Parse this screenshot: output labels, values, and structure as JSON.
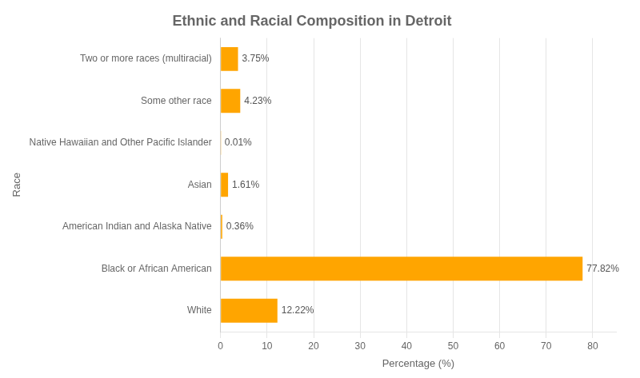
{
  "chart_data": {
    "type": "bar",
    "orientation": "horizontal",
    "title": "Ethnic and Racial Composition in Detroit",
    "xlabel": "Percentage (%)",
    "ylabel": "Race",
    "categories": [
      "White",
      "Black or African American",
      "American Indian and Alaska Native",
      "Asian",
      "Native Hawaiian and Other Pacific Islander",
      "Some other race",
      "Two or more races (multiracial)"
    ],
    "values": [
      12.22,
      77.82,
      0.36,
      1.61,
      0.01,
      4.23,
      3.75
    ],
    "value_labels": [
      "12.22%",
      "77.82%",
      "0.36%",
      "1.61%",
      "0.01%",
      "4.23%",
      "3.75%"
    ],
    "data_labels": true,
    "color": "#FFA500",
    "xlim": [
      0,
      85
    ],
    "xticks": [
      0,
      10,
      20,
      30,
      40,
      50,
      60,
      70,
      80
    ],
    "grid": true
  }
}
